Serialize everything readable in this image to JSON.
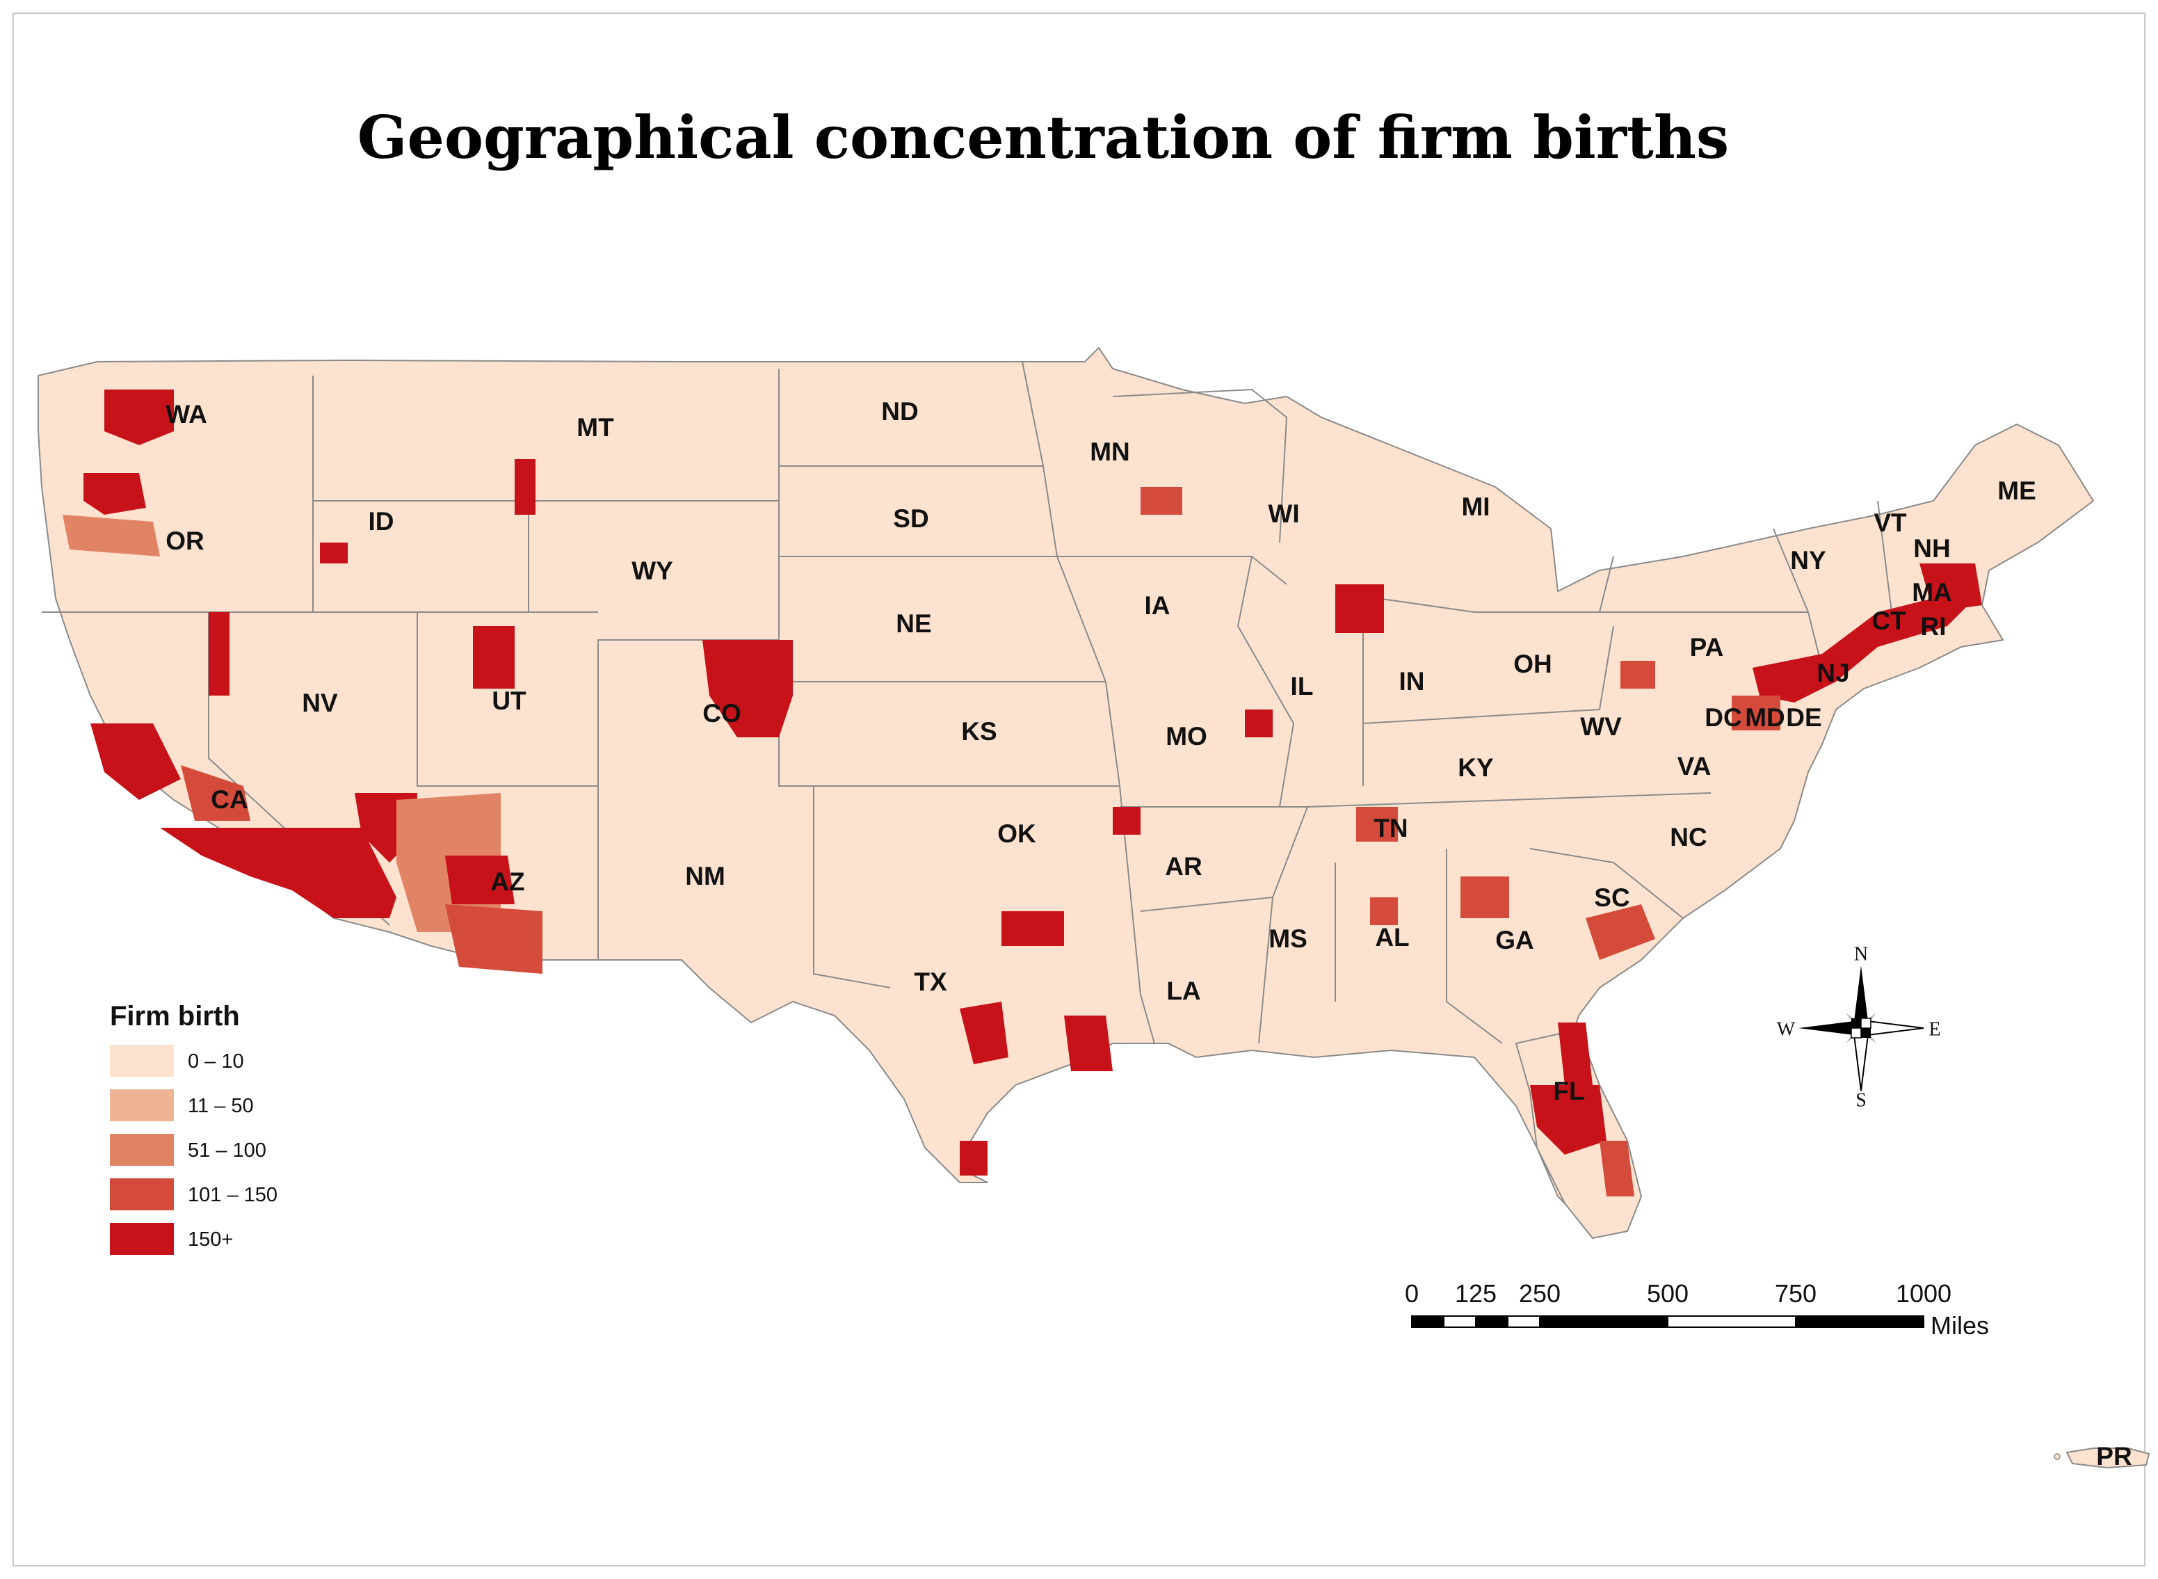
{
  "title": "Geographical concentration of firm births",
  "legend": {
    "title": "Firm birth",
    "classes": [
      {
        "label": "0 – 10",
        "color": "#fde3cf"
      },
      {
        "label": "11 – 50",
        "color": "#efb493"
      },
      {
        "label": "51 – 100",
        "color": "#e18466"
      },
      {
        "label": "101 – 150",
        "color": "#d44b3b"
      },
      {
        "label": "150+",
        "color": "#c8121a"
      }
    ]
  },
  "states": [
    {
      "abbr": "WA"
    },
    {
      "abbr": "OR"
    },
    {
      "abbr": "CA"
    },
    {
      "abbr": "ID"
    },
    {
      "abbr": "NV"
    },
    {
      "abbr": "MT"
    },
    {
      "abbr": "WY"
    },
    {
      "abbr": "UT"
    },
    {
      "abbr": "CO"
    },
    {
      "abbr": "AZ"
    },
    {
      "abbr": "NM"
    },
    {
      "abbr": "ND"
    },
    {
      "abbr": "SD"
    },
    {
      "abbr": "NE"
    },
    {
      "abbr": "KS"
    },
    {
      "abbr": "OK"
    },
    {
      "abbr": "TX"
    },
    {
      "abbr": "MN"
    },
    {
      "abbr": "IA"
    },
    {
      "abbr": "MO"
    },
    {
      "abbr": "AR"
    },
    {
      "abbr": "LA"
    },
    {
      "abbr": "WI"
    },
    {
      "abbr": "IL"
    },
    {
      "abbr": "MS"
    },
    {
      "abbr": "MI"
    },
    {
      "abbr": "IN"
    },
    {
      "abbr": "KY"
    },
    {
      "abbr": "TN"
    },
    {
      "abbr": "AL"
    },
    {
      "abbr": "OH"
    },
    {
      "abbr": "GA"
    },
    {
      "abbr": "FL"
    },
    {
      "abbr": "WV"
    },
    {
      "abbr": "VA"
    },
    {
      "abbr": "NC"
    },
    {
      "abbr": "SC"
    },
    {
      "abbr": "PA"
    },
    {
      "abbr": "NY"
    },
    {
      "abbr": "DC"
    },
    {
      "abbr": "MD"
    },
    {
      "abbr": "DE"
    },
    {
      "abbr": "NJ"
    },
    {
      "abbr": "CT"
    },
    {
      "abbr": "RI"
    },
    {
      "abbr": "MA"
    },
    {
      "abbr": "VT"
    },
    {
      "abbr": "NH"
    },
    {
      "abbr": "ME"
    },
    {
      "abbr": "PR"
    }
  ],
  "compass": {
    "n": "N",
    "s": "S",
    "e": "E",
    "w": "W"
  },
  "scale_bar": {
    "ticks": [
      "0",
      "125",
      "250",
      "500",
      "750",
      "1000"
    ],
    "unit": "Miles"
  }
}
